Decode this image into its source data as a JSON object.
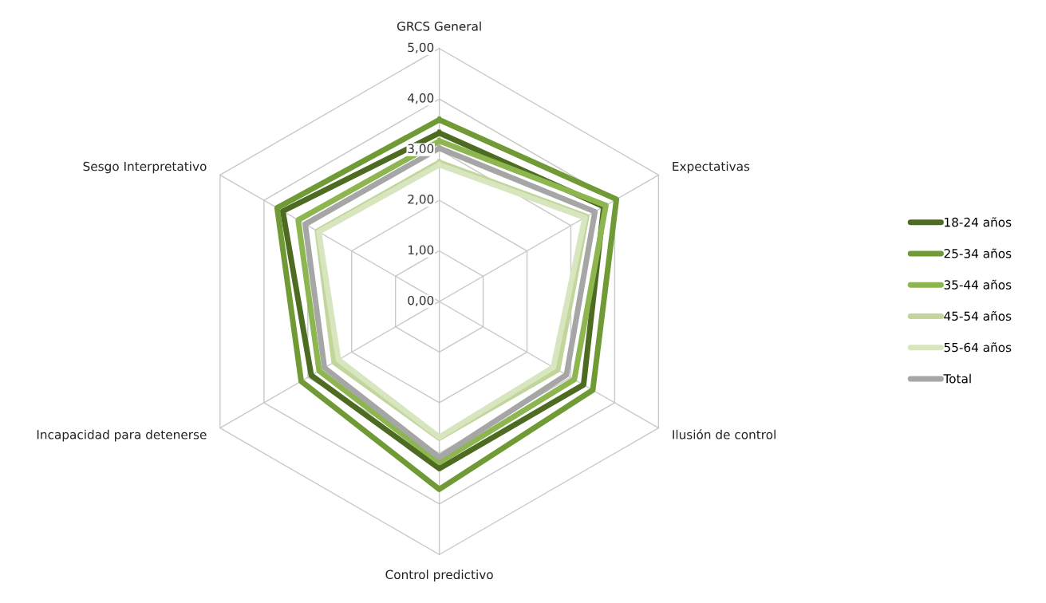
{
  "chart_data": {
    "type": "radar",
    "categories": [
      "GRCS General",
      "Expectativas",
      "Ilusión de control",
      "Control predictivo",
      "Incapacidad para detenerse",
      "Sesgo Interpretativo"
    ],
    "ylim": [
      0,
      5
    ],
    "yticks": [
      {
        "value": 0,
        "label": "0,00"
      },
      {
        "value": 1,
        "label": "1,00"
      },
      {
        "value": 2,
        "label": "2,00"
      },
      {
        "value": 3,
        "label": "3,00"
      },
      {
        "value": 4,
        "label": "4,00"
      },
      {
        "value": 5,
        "label": "5,00"
      }
    ],
    "grid": true,
    "legend": "right",
    "series": [
      {
        "name": "18-24 años",
        "color": "#4e6b22",
        "values": [
          3.33,
          3.75,
          3.29,
          3.3,
          2.92,
          3.57
        ]
      },
      {
        "name": "25-34 años",
        "color": "#6f9a35",
        "values": [
          3.59,
          4.04,
          3.5,
          3.71,
          3.15,
          3.7
        ]
      },
      {
        "name": "35-44 años",
        "color": "#8db650",
        "values": [
          3.17,
          3.8,
          3.08,
          3.18,
          2.74,
          3.22
        ]
      },
      {
        "name": "45-54 años",
        "color": "#c2d69b",
        "values": [
          2.75,
          3.36,
          2.7,
          2.7,
          2.4,
          2.78
        ]
      },
      {
        "name": "55-64 años",
        "color": "#d8e6c0",
        "values": [
          2.7,
          3.32,
          2.6,
          2.68,
          2.3,
          2.75
        ]
      },
      {
        "name": "Total",
        "color": "#a6a6a6",
        "values": [
          3.03,
          3.55,
          2.9,
          3.08,
          2.62,
          3.06
        ]
      }
    ]
  }
}
